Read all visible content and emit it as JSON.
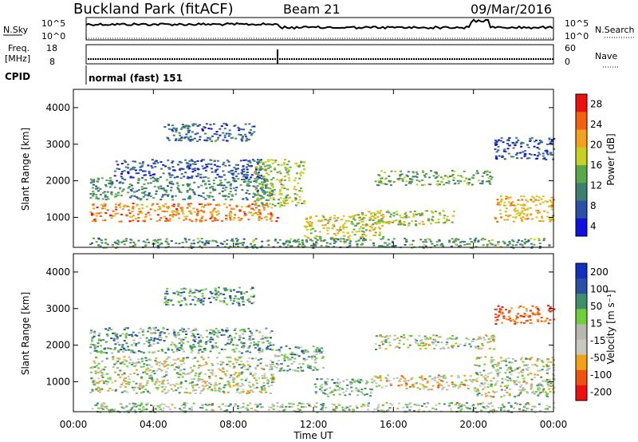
{
  "header": {
    "station": "Buckland Park (fitACF)",
    "beam": "Beam 21",
    "date": "09/Mar/2016"
  },
  "noise_panel": {
    "left_label": "N.Sky",
    "left_ticks": [
      "10^5",
      "10^0"
    ],
    "right_label": "N.Search",
    "right_ticks": [
      "10^5",
      "10^0"
    ]
  },
  "freq_panel": {
    "left_label_1": "Freq.",
    "left_label_2": "[MHz]",
    "left_ticks": [
      "18",
      "8"
    ],
    "right_label": "Nave",
    "right_ticks": [
      "60",
      "0"
    ]
  },
  "cpid": {
    "label": "CPID",
    "value": "normal (fast) 151"
  },
  "colors": {
    "power_scale": [
      "#1010e0",
      "#2a4fa8",
      "#3f7f70",
      "#5aa84a",
      "#c8d020",
      "#f2a21a",
      "#f26010",
      "#ee1010"
    ],
    "velocity_scale": [
      "#ee1010",
      "#f25010",
      "#f2a21a",
      "#c8c8c0",
      "#b8b8b0",
      "#6fcf3a",
      "#3f8f6a",
      "#2a4fa8",
      "#1030c0"
    ]
  },
  "chart_data": [
    {
      "type": "heatmap",
      "name": "power",
      "ylabel": "Slant Range [km]",
      "yticks": [
        "1000",
        "2000",
        "3000",
        "4000"
      ],
      "ylim": [
        180,
        4500
      ],
      "xlim": [
        "00:00",
        "24:00"
      ],
      "colorbar_label": "Power [dB]",
      "colorbar_ticks": [
        "4",
        "8",
        "12",
        "16",
        "20",
        "24",
        "28"
      ],
      "colorbar_range": [
        0,
        32
      ],
      "bands": [
        {
          "start_h": 0.8,
          "end_h": 10.2,
          "range_km": [
            900,
            1400
          ],
          "level": 26
        },
        {
          "start_h": 0.8,
          "end_h": 10.0,
          "range_km": [
            1500,
            2100
          ],
          "level": 13
        },
        {
          "start_h": 2.0,
          "end_h": 9.5,
          "range_km": [
            2100,
            2600
          ],
          "level": 8
        },
        {
          "start_h": 4.5,
          "end_h": 9.0,
          "range_km": [
            3100,
            3600
          ],
          "level": 10
        },
        {
          "start_h": 9.0,
          "end_h": 11.5,
          "range_km": [
            1300,
            2600
          ],
          "level": 18
        },
        {
          "start_h": 11.5,
          "end_h": 15.5,
          "range_km": [
            400,
            1100
          ],
          "level": 21
        },
        {
          "start_h": 15.0,
          "end_h": 21.0,
          "range_km": [
            1900,
            2300
          ],
          "level": 15
        },
        {
          "start_h": 14.0,
          "end_h": 19.0,
          "range_km": [
            800,
            1200
          ],
          "level": 19
        },
        {
          "start_h": 21.0,
          "end_h": 24.0,
          "range_km": [
            900,
            1600
          ],
          "level": 23
        },
        {
          "start_h": 21.0,
          "end_h": 24.0,
          "range_km": [
            2600,
            3200
          ],
          "level": 8
        },
        {
          "start_h": 0.8,
          "end_h": 24.0,
          "range_km": [
            180,
            450
          ],
          "level": 14
        }
      ]
    },
    {
      "type": "heatmap",
      "name": "velocity",
      "ylabel": "Slant Range [km]",
      "yticks": [
        "1000",
        "2000",
        "3000",
        "4000"
      ],
      "ylim": [
        180,
        4500
      ],
      "xlabel": "Time UT",
      "xticks": [
        "00:00",
        "04:00",
        "08:00",
        "12:00",
        "16:00",
        "20:00",
        "00:00"
      ],
      "xlim": [
        "00:00",
        "24:00"
      ],
      "colorbar_label": "Velocity [m s⁻¹]",
      "colorbar_ticks": [
        "200",
        "100",
        "50",
        "15",
        "-15",
        "-50",
        "-100",
        "-200"
      ],
      "bands": [
        {
          "start_h": 0.8,
          "end_h": 10.0,
          "range_km": [
            700,
            1700
          ],
          "velocity": 0
        },
        {
          "start_h": 0.8,
          "end_h": 10.0,
          "range_km": [
            1800,
            2500
          ],
          "velocity": 60
        },
        {
          "start_h": 4.5,
          "end_h": 9.0,
          "range_km": [
            3100,
            3600
          ],
          "velocity": 80
        },
        {
          "start_h": 10.0,
          "end_h": 12.5,
          "range_km": [
            1300,
            2000
          ],
          "velocity": 40
        },
        {
          "start_h": 12.0,
          "end_h": 15.0,
          "range_km": [
            600,
            1100
          ],
          "velocity": 30
        },
        {
          "start_h": 15.0,
          "end_h": 20.0,
          "range_km": [
            800,
            1200
          ],
          "velocity": -40
        },
        {
          "start_h": 15.0,
          "end_h": 21.0,
          "range_km": [
            1900,
            2300
          ],
          "velocity": 0
        },
        {
          "start_h": 20.0,
          "end_h": 24.0,
          "range_km": [
            600,
            1700
          ],
          "velocity": 0
        },
        {
          "start_h": 21.0,
          "end_h": 24.0,
          "range_km": [
            2600,
            3100
          ],
          "velocity": -150
        },
        {
          "start_h": 0.8,
          "end_h": 24.0,
          "range_km": [
            180,
            450
          ],
          "velocity": 20
        }
      ]
    }
  ]
}
